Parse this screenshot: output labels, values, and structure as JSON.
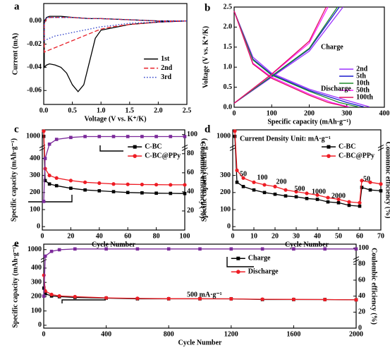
{
  "chart_data": [
    {
      "type": "line",
      "panel": "a",
      "xlabel": "Voltage (V vs. K⁺/K)",
      "ylabel": "Current (mA)",
      "xlim": [
        0,
        2.5
      ],
      "xticks": [
        {
          "value": 0,
          "label": "0.0"
        },
        0.5,
        {
          "value": 1,
          "label": "1.0"
        },
        1.5,
        {
          "value": 2,
          "label": "2.0"
        },
        2.5
      ],
      "ylim": [
        -0.072,
        0.015
      ],
      "yticks": [
        {
          "value": 0,
          "label": "0.00"
        },
        -0.02,
        -0.04,
        -0.06
      ],
      "legend": "center right",
      "x": [
        2.5,
        2.0,
        1.5,
        1.2,
        1.0,
        0.9,
        0.8,
        0.7,
        0.6,
        0.5,
        0.4,
        0.3,
        0.2,
        0.1,
        0.05,
        0.01,
        0.01,
        0.05,
        0.1,
        0.3,
        0.5,
        0.8,
        1.0,
        1.5,
        2.0,
        2.5
      ],
      "series": [
        {
          "name": "1st",
          "color": "#000000",
          "dash": "solid",
          "values": [
            0,
            -0.001,
            -0.003,
            -0.006,
            -0.008,
            -0.015,
            -0.035,
            -0.055,
            -0.061,
            -0.055,
            -0.045,
            -0.04,
            -0.038,
            -0.037,
            -0.038,
            -0.04,
            0,
            0.003,
            0.004,
            0.004,
            0.003,
            0.002,
            0.002,
            0.001,
            0,
            0
          ]
        },
        {
          "name": "2nd",
          "color": "#e8202a",
          "dash": "dashed",
          "values": [
            0,
            -0.001,
            -0.003,
            -0.005,
            -0.007,
            -0.009,
            -0.011,
            -0.013,
            -0.015,
            -0.017,
            -0.019,
            -0.021,
            -0.023,
            -0.025,
            -0.026,
            -0.027,
            -0.002,
            0.002,
            0.003,
            0.003,
            0.003,
            0.002,
            0.002,
            0.001,
            0,
            0
          ]
        },
        {
          "name": "3rd",
          "color": "#2a3cc8",
          "dash": "dotted",
          "values": [
            0,
            -0.001,
            -0.002,
            -0.004,
            -0.005,
            -0.006,
            -0.007,
            -0.008,
            -0.009,
            -0.01,
            -0.011,
            -0.012,
            -0.013,
            -0.015,
            -0.016,
            -0.017,
            -0.001,
            0.003,
            0.003,
            0.003,
            0.003,
            0.002,
            0.002,
            0.001,
            0,
            0
          ]
        }
      ]
    },
    {
      "type": "line",
      "panel": "b",
      "xlabel": "Specific capacity (mAh·g⁻¹)",
      "ylabel": "Voltage (V vs. K⁺/K)",
      "xlim": [
        0,
        400
      ],
      "xticks": [
        0,
        100,
        200,
        300,
        400
      ],
      "ylim": [
        0,
        2.5
      ],
      "yticks": [
        {
          "value": 0,
          "label": "0.0"
        },
        0.5,
        {
          "value": 1,
          "label": "1.0"
        },
        1.5,
        {
          "value": 2,
          "label": "2.0"
        },
        2.5
      ],
      "legend": "lower right",
      "annotations": [
        "Charge",
        "Discharge"
      ],
      "series": [
        {
          "name": "2nd",
          "color": "#9b30ff",
          "x": [
            0,
            50,
            100,
            200,
            300,
            360,
            null,
            0,
            100,
            200,
            290
          ],
          "values": [
            2.4,
            1.25,
            0.85,
            0.45,
            0.17,
            0.01,
            null,
            0.1,
            0.75,
            1.4,
            2.5
          ]
        },
        {
          "name": "5th",
          "color": "#1a1acd",
          "x": [
            0,
            50,
            100,
            200,
            300,
            345,
            null,
            0,
            100,
            200,
            280
          ],
          "values": [
            2.4,
            1.2,
            0.82,
            0.42,
            0.12,
            0.01,
            null,
            0.1,
            0.77,
            1.45,
            2.5
          ]
        },
        {
          "name": "10th",
          "color": "#1f8a2a",
          "x": [
            0,
            50,
            100,
            200,
            280,
            330,
            null,
            0,
            100,
            200,
            275
          ],
          "values": [
            2.4,
            1.18,
            0.8,
            0.4,
            0.12,
            0.01,
            null,
            0.1,
            0.78,
            1.47,
            2.5
          ]
        },
        {
          "name": "50th",
          "color": "#ff20ff",
          "x": [
            0,
            50,
            100,
            200,
            260,
            305,
            null,
            0,
            100,
            200,
            250
          ],
          "values": [
            2.4,
            1.1,
            0.75,
            0.33,
            0.12,
            0.01,
            null,
            0.1,
            0.82,
            1.6,
            2.5
          ]
        },
        {
          "name": "100th",
          "color": "#e01060",
          "x": [
            0,
            50,
            100,
            200,
            250,
            300,
            null,
            0,
            100,
            200,
            245
          ],
          "values": [
            2.4,
            1.08,
            0.72,
            0.3,
            0.12,
            0.01,
            null,
            0.1,
            0.83,
            1.65,
            2.5
          ]
        }
      ]
    },
    {
      "type": "line",
      "panel": "c",
      "xlabel": "Cycle Number",
      "ylabel": "Specific capacity (mAh·g⁻¹)",
      "y2label": "Coulombic efficiency (%)",
      "xlim": [
        0,
        100
      ],
      "xticks": [
        0,
        20,
        40,
        60,
        80,
        100
      ],
      "ylim": [
        -20,
        1050
      ],
      "ybreak": [
        450,
        950
      ],
      "yticks": [
        0,
        100,
        200,
        300,
        400,
        1000
      ],
      "y2lim": [
        0,
        105
      ],
      "y2ticks": [
        20,
        40,
        60,
        80,
        100
      ],
      "legend": "upper right",
      "x": [
        1,
        2,
        5,
        10,
        20,
        30,
        40,
        50,
        60,
        70,
        80,
        90,
        100
      ],
      "series": [
        {
          "name": "C-BC",
          "color": "#000000",
          "marker": "square",
          "values": [
            1000,
            270,
            250,
            240,
            225,
            215,
            210,
            205,
            200,
            198,
            196,
            195,
            194
          ]
        },
        {
          "name": "C-BC@PPy",
          "color": "#ee1c24",
          "marker": "circle",
          "values": [
            1040,
            340,
            300,
            285,
            270,
            260,
            255,
            250,
            248,
            247,
            246,
            245,
            245
          ]
        },
        {
          "color": "#7b2a9a",
          "marker": "square",
          "axis": "y2",
          "values": [
            30,
            75,
            90,
            95,
            97,
            98,
            98,
            98,
            98,
            98,
            98,
            98,
            98
          ]
        }
      ]
    },
    {
      "type": "line",
      "panel": "d",
      "xlabel": "Cycle Number",
      "ylabel": "Specific capacity (mAh·g⁻¹)",
      "y2label": "Coulombic efficiency (%)",
      "xlim": [
        0,
        70
      ],
      "xticks": [
        0,
        10,
        20,
        30,
        40,
        50,
        60,
        70
      ],
      "ylim": [
        -20,
        1050
      ],
      "ybreak": [
        450,
        950
      ],
      "yticks": [
        0,
        100,
        200,
        300,
        1000
      ],
      "legend": "upper right",
      "annotations": [
        "Current Density Unit: mA·g⁻¹",
        "50",
        "100",
        "200",
        "500",
        "1000",
        "2000",
        "50"
      ],
      "x": [
        1,
        2,
        5,
        10,
        15,
        20,
        25,
        30,
        35,
        40,
        45,
        50,
        55,
        60,
        61,
        65,
        70
      ],
      "series": [
        {
          "name": "C-BC",
          "color": "#000000",
          "marker": "square",
          "values": [
            1000,
            260,
            235,
            215,
            200,
            190,
            180,
            175,
            165,
            160,
            145,
            140,
            125,
            120,
            230,
            215,
            210
          ]
        },
        {
          "name": "C-BC@PPy",
          "color": "#ee1c24",
          "marker": "circle",
          "values": [
            1040,
            330,
            285,
            260,
            245,
            235,
            215,
            205,
            195,
            185,
            170,
            160,
            145,
            140,
            270,
            260,
            250
          ]
        }
      ]
    },
    {
      "type": "line",
      "panel": "e",
      "xlabel": "Cycle Number",
      "ylabel": "Specific capacity (mAh·g⁻¹)",
      "y2label": "Coulombic efficiency (%)",
      "xlim": [
        0,
        2000
      ],
      "xticks": [
        0,
        400,
        800,
        1200,
        1600,
        2000
      ],
      "ylim": [
        -20,
        1050
      ],
      "ybreak": [
        450,
        950
      ],
      "yticks": [
        0,
        100,
        200,
        300,
        400,
        1000
      ],
      "y2lim": [
        0,
        105
      ],
      "y2ticks": [
        0,
        20,
        40,
        60,
        80,
        100
      ],
      "legend": "upper right",
      "annotations": [
        "500 mA·g⁻¹"
      ],
      "x": [
        1,
        10,
        50,
        100,
        200,
        400,
        600,
        800,
        1000,
        1200,
        1400,
        1600,
        1800,
        2000
      ],
      "series": [
        {
          "name": "Charge",
          "color": "#000000",
          "marker": "square",
          "values": [
            260,
            220,
            205,
            200,
            195,
            190,
            185,
            185,
            185,
            185,
            180,
            180,
            180,
            178
          ]
        },
        {
          "name": "Discharge",
          "color": "#ee1c24",
          "marker": "circle",
          "values": [
            350,
            240,
            215,
            205,
            200,
            192,
            188,
            186,
            186,
            185,
            182,
            181,
            180,
            178
          ]
        },
        {
          "color": "#7b2a9a",
          "marker": "square",
          "axis": "y2",
          "values": [
            40,
            90,
            96,
            98,
            99,
            99,
            99,
            99,
            99,
            99,
            99,
            99,
            99,
            99
          ]
        }
      ]
    }
  ]
}
